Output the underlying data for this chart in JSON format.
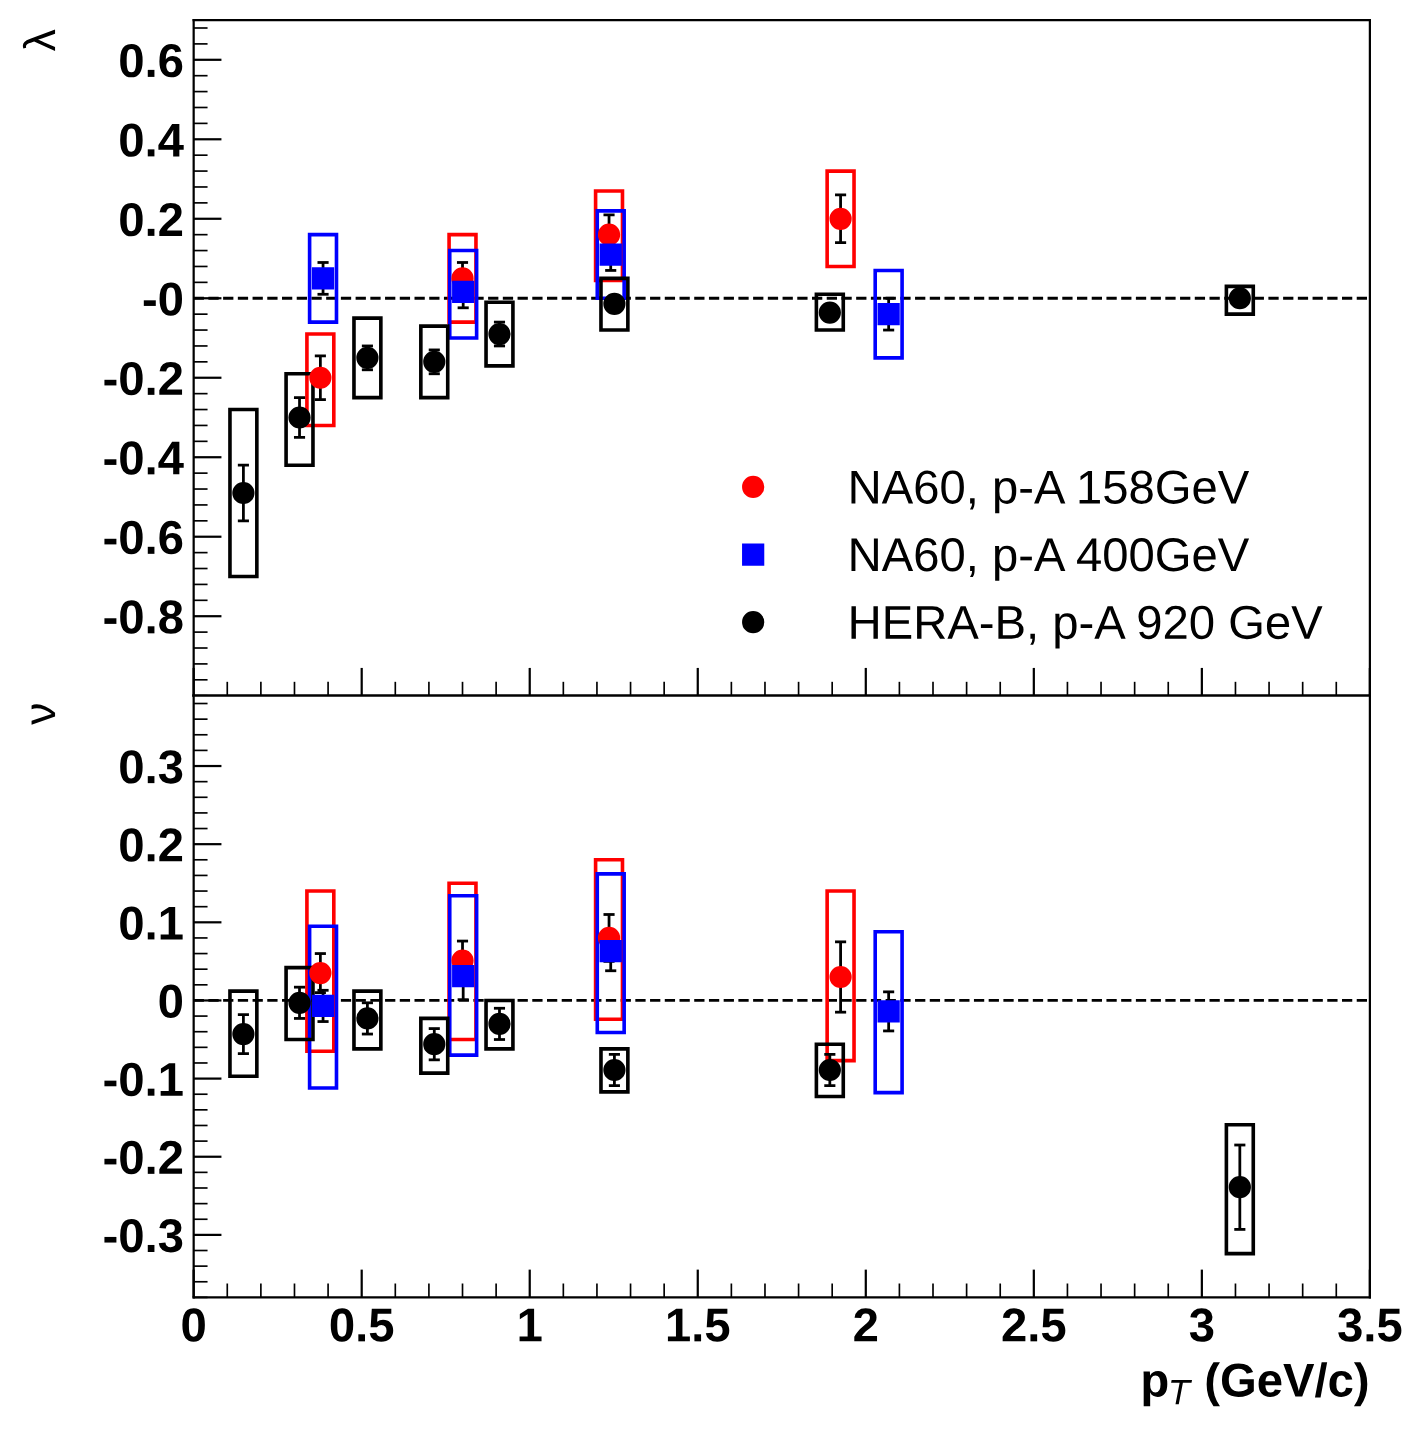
{
  "chart_data": [
    {
      "type": "scatter",
      "ylabel": "λ",
      "xlim": [
        0,
        3.5
      ],
      "xticks": [
        0,
        0.5,
        1,
        1.5,
        2,
        2.5,
        3,
        3.5
      ],
      "ylim": [
        -1,
        0.7
      ],
      "yticks": [
        -0.8,
        -0.6,
        -0.4,
        -0.2,
        {
          "value": 0,
          "label": "-0"
        },
        0.2,
        0.4,
        0.6
      ],
      "tick_labels": "y",
      "legend": "bottom right",
      "grid": false,
      "ref_lines": [
        {
          "axis": "y",
          "value": 0,
          "line_style": "dashed",
          "color": "#000000"
        }
      ],
      "series": [
        {
          "type": "bar",
          "color": "#ff0000",
          "x": [
            0.377,
            0.8,
            1.236,
            1.925
          ],
          "base": [
            -0.32,
            -0.06,
            0.045,
            0.08
          ],
          "values": [
            0.23,
            0.22,
            0.225,
            0.24
          ]
        },
        {
          "type": "bar",
          "color": "#0000ff",
          "x": [
            0.385,
            0.802,
            1.241,
            2.068
          ],
          "base": [
            -0.06,
            -0.1,
            0.0,
            -0.15
          ],
          "values": [
            0.22,
            0.22,
            0.22,
            0.22
          ]
        },
        {
          "type": "bar",
          "color": "#000000",
          "x": [
            0.148,
            0.315,
            0.517,
            0.716,
            0.91,
            1.252,
            1.893,
            3.113
          ],
          "base": [
            -0.7,
            -0.42,
            -0.25,
            -0.25,
            -0.17,
            -0.08,
            -0.08,
            -0.04
          ],
          "values": [
            0.42,
            0.23,
            0.2,
            0.18,
            0.16,
            0.13,
            0.09,
            0.07
          ]
        },
        {
          "name": "NA60, p-A 158GeV",
          "color": "#ff0000",
          "marker": "circle",
          "x": [
            0.377,
            0.8,
            1.236,
            1.925
          ],
          "values": [
            -0.2,
            0.05,
            0.16,
            0.2
          ],
          "errors": [
            0.055,
            0.04,
            0.05,
            0.06
          ]
        },
        {
          "name": "NA60, p-A 400GeV",
          "color": "#0000ff",
          "marker": "square",
          "x": [
            0.385,
            0.802,
            1.241,
            2.068
          ],
          "values": [
            0.05,
            0.016,
            0.11,
            -0.04
          ],
          "errors": [
            0.04,
            0.04,
            0.04,
            0.04
          ]
        },
        {
          "name": "HERA-B, p-A 920 GeV",
          "color": "#000000",
          "marker": "circle",
          "x": [
            0.148,
            0.315,
            0.517,
            0.716,
            0.91,
            1.252,
            1.893,
            3.113
          ],
          "values": [
            -0.49,
            -0.3,
            -0.15,
            -0.16,
            -0.09,
            -0.014,
            -0.036,
            0.0
          ],
          "errors": [
            0.07,
            0.05,
            0.03,
            0.03,
            0.03,
            0.02,
            0.02,
            0.02
          ]
        }
      ]
    },
    {
      "type": "scatter",
      "ylabel": "ν",
      "xlabel": "p$_{T}$ (GeV/c)",
      "xlim": [
        0,
        3.5
      ],
      "xticks": [
        0,
        0.5,
        1,
        1.5,
        2,
        2.5,
        3,
        3.5
      ],
      "ylim": [
        -0.38,
        0.39
      ],
      "yticks": [
        -0.3,
        -0.2,
        -0.1,
        0,
        0.1,
        0.2,
        0.3
      ],
      "grid": false,
      "ref_lines": [
        {
          "axis": "y",
          "value": 0,
          "line_style": "dashed",
          "color": "#000000"
        }
      ],
      "series": [
        {
          "type": "bar",
          "color": "#ff0000",
          "x": [
            0.377,
            0.8,
            1.236,
            1.925
          ],
          "base": [
            -0.065,
            -0.05,
            -0.024,
            -0.077
          ],
          "values": [
            0.205,
            0.2,
            0.204,
            0.217
          ]
        },
        {
          "type": "bar",
          "color": "#0000ff",
          "x": [
            0.385,
            0.802,
            1.241,
            2.068
          ],
          "base": [
            -0.112,
            -0.07,
            -0.041,
            -0.118
          ],
          "values": [
            0.207,
            0.204,
            0.203,
            0.206
          ]
        },
        {
          "type": "bar",
          "color": "#000000",
          "x": [
            0.148,
            0.315,
            0.517,
            0.716,
            0.91,
            1.252,
            1.893,
            3.113
          ],
          "base": [
            -0.097,
            -0.05,
            -0.062,
            -0.093,
            -0.062,
            -0.117,
            -0.123,
            -0.324
          ],
          "values": [
            0.109,
            0.092,
            0.074,
            0.07,
            0.062,
            0.055,
            0.067,
            0.165
          ]
        },
        {
          "color": "#ff0000",
          "marker": "circle",
          "x": [
            0.377,
            0.8,
            1.236,
            1.925
          ],
          "values": [
            0.035,
            0.051,
            0.08,
            0.03
          ],
          "errors": [
            0.025,
            0.025,
            0.03,
            0.045
          ]
        },
        {
          "color": "#0000ff",
          "marker": "square",
          "x": [
            0.385,
            0.802,
            1.241,
            2.068
          ],
          "values": [
            -0.007,
            0.031,
            0.063,
            -0.014
          ],
          "errors": [
            0.02,
            0.03,
            0.025,
            0.025
          ]
        },
        {
          "color": "#000000",
          "marker": "circle",
          "x": [
            0.148,
            0.315,
            0.517,
            0.716,
            0.91,
            1.252,
            1.893,
            3.113
          ],
          "values": [
            -0.043,
            -0.003,
            -0.023,
            -0.056,
            -0.03,
            -0.089,
            -0.089,
            -0.239
          ],
          "errors": [
            0.025,
            0.02,
            0.02,
            0.02,
            0.02,
            0.02,
            0.02,
            0.054
          ]
        }
      ]
    }
  ]
}
